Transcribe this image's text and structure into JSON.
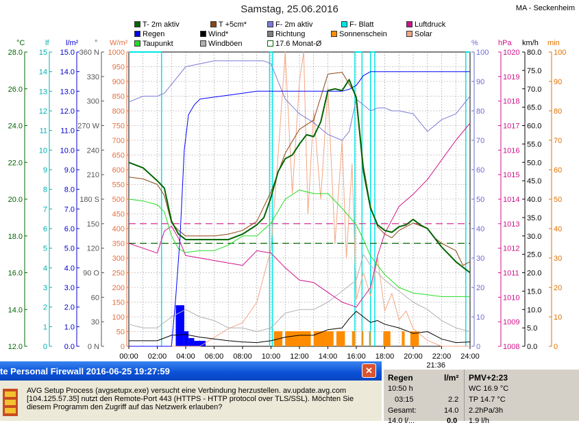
{
  "title": "Samstag, 25.06.2016",
  "station": "MA - Seckenheim",
  "cursor_time": "21:36",
  "legend": [
    {
      "label": "T- 2m aktiv",
      "color": "#006400"
    },
    {
      "label": "T +5cm*",
      "color": "#8b4513"
    },
    {
      "label": "F- 2m aktiv",
      "color": "#7b7bd6"
    },
    {
      "label": "F- Blatt",
      "color": "#00e5e5"
    },
    {
      "label": "Luftdruck",
      "color": "#d0108a"
    },
    {
      "label": "Regen",
      "color": "#0000ff"
    },
    {
      "label": "Wind*",
      "color": "#000000"
    },
    {
      "label": "Richtung",
      "color": "#808080"
    },
    {
      "label": "Sonnenschein",
      "color": "#ff8c00"
    },
    {
      "label": "Solar",
      "color": "#f4a582"
    },
    {
      "label": "Taupunkt",
      "color": "#22dd22"
    },
    {
      "label": "Windböen",
      "color": "#b0b0b0"
    },
    {
      "label": "17.6 Monat-Ø",
      "color": "#006400"
    }
  ],
  "popup": {
    "title": "te Personal Firewall 2016-06-25 19:27:59",
    "close": "✕",
    "message": [
      "AVG Setup Process (avgsetupx.exe) versucht eine Verbindung herzustellen. av.update.avg.com",
      "[104.125.57.35] nutzt den Remote-Port 443 (HTTPS - HTTP protocol over TLS/SSL). Möchten Sie",
      "diesem Programm den Zugriff auf das Netzwerk erlauben?"
    ]
  },
  "panel": {
    "regen_header": "Regen",
    "unit_header": "l/m²",
    "pmv_header": "PMV+2:23",
    "rows": [
      {
        "time": "10:50 h",
        "value": "",
        "right": "WC 16.9 °C"
      },
      {
        "time": "03:15",
        "value": "2.2",
        "right": "TP 14.7 °C"
      },
      {
        "time": "Gesamt:",
        "value": "14.0",
        "right": "2.2hPa/3h"
      },
      {
        "time": "14.0 l/...",
        "value": "0.0",
        "right": "1.9 l/h"
      }
    ]
  },
  "chart_data": {
    "type": "line",
    "title": "Samstag, 25.06.2016",
    "x_ticks": [
      "00:00",
      "02:00",
      "04:00",
      "06:00",
      "08:00",
      "10:00",
      "12:00",
      "14:00",
      "16:00",
      "18:00",
      "20:00",
      "22:00",
      "24:00"
    ],
    "xlim": [
      0,
      24
    ],
    "axes": {
      "temperature": {
        "unit": "°C",
        "ylim": [
          12,
          28
        ],
        "ticks": [
          "12.0",
          "14.0",
          "16.0",
          "18.0",
          "20.0",
          "22.0",
          "24.0",
          "26.0",
          "28.0"
        ],
        "color": "#006400"
      },
      "leaf": {
        "unit": "lf",
        "ylim": [
          0,
          15
        ],
        "ticks": [
          "0",
          "1",
          "2",
          "3",
          "4",
          "5",
          "6",
          "7",
          "8",
          "9",
          "10",
          "11",
          "12",
          "13",
          "14",
          "15"
        ],
        "color": "#00b0b0"
      },
      "rain": {
        "unit": "l/m²",
        "ylim": [
          0,
          15
        ],
        "ticks": [
          "0.0",
          "1.0",
          "2.0",
          "3.0",
          "4.0",
          "5.0",
          "6.0",
          "7.0",
          "8.0",
          "9.0",
          "10.0",
          "11.0",
          "12.0",
          "13.0",
          "14.0",
          "15.0"
        ],
        "color": "#0000cc"
      },
      "direction": {
        "unit": "°",
        "ylim": [
          0,
          360
        ],
        "ticks": [
          "0 N",
          "30",
          "60",
          "90 O",
          "120",
          "150",
          "180 S",
          "210",
          "240",
          "270 W",
          "300",
          "330",
          "360 N"
        ],
        "color": "#555555"
      },
      "solar": {
        "unit": "W/m²",
        "ylim": [
          0,
          1000
        ],
        "ticks": [
          "0",
          "50",
          "100",
          "150",
          "200",
          "250",
          "300",
          "350",
          "400",
          "450",
          "500",
          "550",
          "600",
          "650",
          "700",
          "750",
          "800",
          "850",
          "900",
          "950",
          "1000"
        ],
        "color": "#e07040"
      },
      "humidity": {
        "unit": "%",
        "ylim": [
          0,
          100
        ],
        "ticks": [
          "0",
          "10",
          "20",
          "30",
          "40",
          "50",
          "60",
          "70",
          "80",
          "90",
          "100"
        ],
        "color": "#6a6ad0"
      },
      "pressure": {
        "unit": "hPa",
        "ylim": [
          1008,
          1020
        ],
        "ticks": [
          "1008",
          "1009",
          "1010",
          "1011",
          "1012",
          "1013",
          "1014",
          "1015",
          "1016",
          "1017",
          "1018",
          "1019",
          "1020"
        ],
        "color": "#d0108a"
      },
      "wind": {
        "unit": "km/h",
        "ylim": [
          0,
          80
        ],
        "ticks": [
          "0.0",
          "5.0",
          "10.0",
          "15.0",
          "20.0",
          "25.0",
          "30.0",
          "35.0",
          "40.0",
          "45.0",
          "50.0",
          "55.0",
          "60.0",
          "65.0",
          "70.0",
          "75.0",
          "80.0"
        ],
        "color": "#000000"
      },
      "minutes": {
        "unit": "min",
        "ylim": [
          0,
          100
        ],
        "ticks": [
          "0",
          "10",
          "20",
          "30",
          "40",
          "50",
          "60",
          "70",
          "80",
          "90",
          "100"
        ],
        "color": "#e07000"
      }
    },
    "series": [
      {
        "name": "T- 2m aktiv",
        "axis": "temperature",
        "color": "#006400",
        "width": 2,
        "x": [
          0,
          1,
          2,
          2.5,
          3,
          3.5,
          4,
          5,
          6,
          7,
          8,
          9,
          9.5,
          10,
          10.5,
          11,
          11.5,
          12,
          12.5,
          13,
          13.5,
          14,
          14.5,
          15,
          15.5,
          16,
          16.5,
          17,
          17.5,
          18,
          18.5,
          19,
          19.5,
          20,
          20.5,
          21,
          21.5,
          22,
          22.5,
          23,
          23.5,
          24
        ],
        "y": [
          22.0,
          21.7,
          21.0,
          20.6,
          18.8,
          18.1,
          17.8,
          17.8,
          17.8,
          17.8,
          18.1,
          18.6,
          19.0,
          20.1,
          21.5,
          22.2,
          22.4,
          23.0,
          23.5,
          23.4,
          24.2,
          25.9,
          26.0,
          25.9,
          26.5,
          25.5,
          21.5,
          19.5,
          18.6,
          18.3,
          18.2,
          18.5,
          18.6,
          18.9,
          18.6,
          18.4,
          17.9,
          17.4,
          17.0,
          16.6,
          16.3,
          16.0
        ]
      },
      {
        "name": "T +5cm*",
        "axis": "temperature",
        "color": "#8b4513",
        "width": 1,
        "x": [
          0,
          1,
          2,
          2.5,
          3,
          3.5,
          4,
          5,
          6,
          7,
          8,
          9,
          10,
          11,
          12,
          13,
          14,
          15,
          16,
          16.5,
          17,
          17.5,
          18,
          18.5,
          19,
          20,
          21,
          21.5,
          22,
          23,
          23.5,
          24
        ],
        "y": [
          21.2,
          21.1,
          20.8,
          20.2,
          18.7,
          18.3,
          18.0,
          18.0,
          18.0,
          18.1,
          18.3,
          18.8,
          20.4,
          22.5,
          23.8,
          24.3,
          26.8,
          26.9,
          25.6,
          21.8,
          19.6,
          18.5,
          18.1,
          17.9,
          18.3,
          18.7,
          18.4,
          17.9,
          17.6,
          17.2,
          16.4,
          16.6
        ]
      },
      {
        "name": "Taupunkt",
        "axis": "temperature",
        "color": "#22dd22",
        "width": 1,
        "x": [
          0,
          1,
          2,
          2.5,
          3,
          3.5,
          4,
          5,
          6,
          7,
          8,
          9,
          10,
          11,
          12,
          13,
          14,
          15,
          16,
          16.5,
          17,
          18,
          19,
          20,
          21,
          22,
          23,
          24
        ],
        "y": [
          20.0,
          19.9,
          19.7,
          19.3,
          18.0,
          17.3,
          17.1,
          17.2,
          17.2,
          17.5,
          18.0,
          18.0,
          18.7,
          20.0,
          20.5,
          20.3,
          20.3,
          19.5,
          18.6,
          17.8,
          16.9,
          15.9,
          15.2,
          14.9,
          14.8,
          14.7,
          14.7,
          14.7
        ]
      },
      {
        "name": "F- 2m aktiv",
        "axis": "humidity",
        "color": "#7b7bd6",
        "width": 1,
        "x": [
          0,
          1,
          2,
          2.5,
          3,
          3.5,
          4,
          5,
          6,
          7,
          8,
          9,
          9.5,
          10,
          10.5,
          11,
          12,
          13,
          14,
          15,
          15.5,
          16,
          16.5,
          17,
          17.5,
          18,
          18.5,
          19,
          20,
          21,
          22,
          23,
          24
        ],
        "y": [
          83,
          85,
          85,
          86,
          89,
          92,
          95,
          96,
          97,
          97,
          97,
          97,
          97,
          96,
          90,
          84,
          79,
          76,
          72,
          70,
          73,
          84,
          82,
          80,
          81,
          81,
          80,
          80,
          79,
          73,
          77,
          79,
          85
        ]
      },
      {
        "name": "Luftdruck",
        "axis": "pressure",
        "color": "#d0108a",
        "width": 1,
        "x": [
          0,
          1,
          2,
          2.5,
          3,
          3.5,
          4,
          5,
          6,
          7,
          8,
          9,
          10,
          11,
          12,
          13,
          14,
          15,
          16,
          17,
          17.5,
          18,
          19,
          20,
          21,
          22,
          23,
          24
        ],
        "y": [
          1012.2,
          1012.0,
          1011.8,
          1012.7,
          1012.9,
          1012.4,
          1011.7,
          1011.6,
          1011.5,
          1011.4,
          1011.3,
          1011.9,
          1011.8,
          1011.2,
          1010.7,
          1010.6,
          1010.2,
          1009.8,
          1009.6,
          1010.4,
          1011.7,
          1012.6,
          1013.7,
          1014.2,
          1014.8,
          1015.6,
          1016.4,
          1017.1
        ]
      },
      {
        "name": "Regen",
        "axis": "rain",
        "color": "#0000ff",
        "width": 1,
        "x": [
          0,
          2,
          3,
          3.3,
          3.6,
          3.9,
          4.2,
          4.6,
          5,
          6,
          7,
          8,
          9,
          10,
          12,
          14,
          15,
          15.5,
          16,
          16.5,
          17,
          24
        ],
        "y": [
          0,
          0,
          0,
          2.5,
          5.5,
          10.0,
          11.8,
          12.3,
          12.6,
          12.7,
          12.8,
          12.9,
          13.0,
          13.0,
          13.0,
          13.0,
          13.0,
          13.1,
          13.3,
          13.8,
          14.0,
          14.0
        ]
      },
      {
        "name": "Wind*",
        "axis": "wind",
        "color": "#000000",
        "width": 1,
        "x": [
          0,
          1,
          2,
          3,
          4,
          5,
          6,
          7,
          8,
          9,
          10,
          11,
          12,
          13,
          14,
          15,
          15.5,
          16,
          16.5,
          17,
          17.5,
          18,
          19,
          20,
          21,
          22,
          23,
          24
        ],
        "y": [
          1.5,
          1.5,
          1.5,
          3.0,
          3.2,
          2.5,
          2.0,
          1.5,
          1.2,
          1.0,
          1.5,
          2.5,
          3.0,
          3.0,
          4.5,
          5.0,
          7.5,
          9.5,
          8.0,
          6.5,
          7.0,
          6.0,
          5.0,
          3.5,
          4.0,
          2.0,
          1.0,
          1.2
        ]
      },
      {
        "name": "Windböen",
        "axis": "wind",
        "color": "#b0b0b0",
        "width": 1,
        "x": [
          0,
          1,
          2,
          3,
          4,
          5,
          6,
          7,
          8,
          9,
          10,
          11,
          12,
          13,
          14,
          15,
          16,
          16.5,
          17,
          18,
          19,
          20,
          21,
          22,
          23,
          24
        ],
        "y": [
          6,
          5,
          5,
          8,
          10,
          8,
          7,
          5,
          5,
          4,
          5,
          9,
          10,
          10,
          12,
          15,
          18,
          25,
          22,
          18,
          15,
          12,
          10,
          7,
          5,
          4
        ]
      },
      {
        "name": "Solar",
        "axis": "solar",
        "color": "#f4a582",
        "width": 1,
        "x": [
          0,
          5,
          6,
          7,
          8,
          9,
          10,
          10.5,
          11,
          11.5,
          12,
          12.3,
          12.6,
          13,
          13.5,
          14,
          14.5,
          15,
          15.3,
          15.7,
          16,
          16.5,
          17,
          17.5,
          18,
          18.5,
          19,
          19.5,
          20,
          21,
          22,
          23,
          24
        ],
        "y": [
          0,
          0,
          30,
          60,
          80,
          150,
          330,
          650,
          1000,
          520,
          900,
          1000,
          450,
          800,
          500,
          880,
          350,
          700,
          300,
          620,
          160,
          250,
          170,
          300,
          120,
          180,
          90,
          120,
          60,
          20,
          0,
          0,
          0
        ]
      }
    ],
    "sun_segments": [
      [
        10.2,
        10.8
      ],
      [
        11.0,
        12.8
      ],
      [
        13.0,
        14.4
      ],
      [
        14.6,
        15.2
      ],
      [
        15.7,
        15.9
      ],
      [
        16.4,
        16.5
      ],
      [
        16.9,
        17.0
      ],
      [
        17.9,
        18.4
      ],
      [
        19.2,
        19.4
      ],
      [
        19.8,
        20.4
      ]
    ],
    "monthly_avg_temperature": 17.6,
    "monthly_avg_pressure": 1013.0,
    "leaf_wet_segments": [
      [
        0,
        2.3
      ],
      [
        9.9,
        10.1
      ],
      [
        15.9,
        16.4
      ],
      [
        17.0,
        17.3
      ],
      [
        23.7,
        24
      ]
    ]
  }
}
